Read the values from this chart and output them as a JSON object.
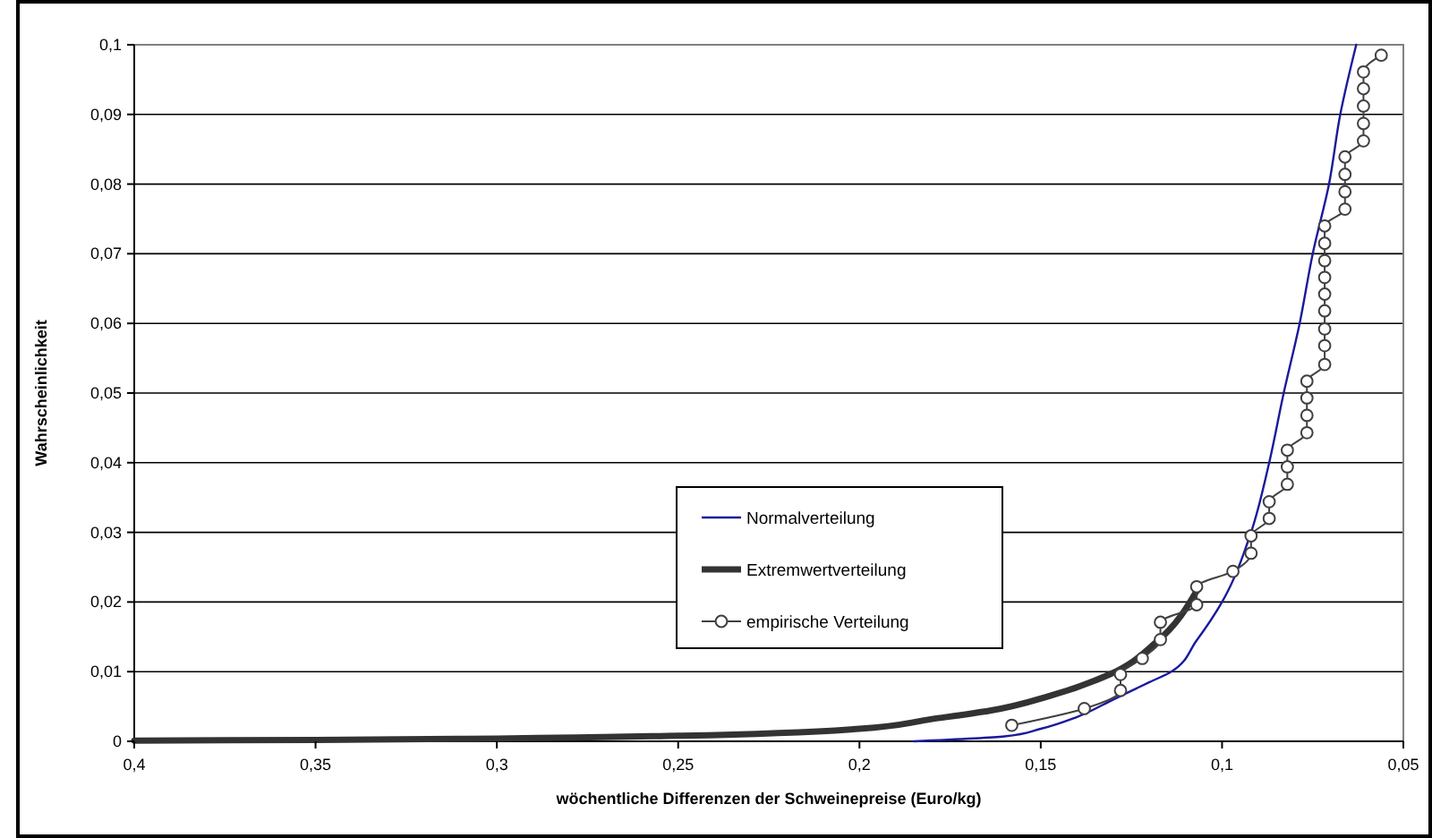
{
  "chart_data": {
    "type": "line",
    "xlabel": "wöchentliche Differenzen der Schweinepreise (Euro/kg)",
    "ylabel": "Wahrscheinlichkeit",
    "xlim": [
      0.4,
      0.05
    ],
    "xticks": [
      {
        "value": 0.4,
        "label": "0,4"
      },
      {
        "value": 0.35,
        "label": "0,35"
      },
      {
        "value": 0.3,
        "label": "0,3"
      },
      {
        "value": 0.25,
        "label": "0,25"
      },
      {
        "value": 0.2,
        "label": "0,2"
      },
      {
        "value": 0.15,
        "label": "0,15"
      },
      {
        "value": 0.1,
        "label": "0,1"
      },
      {
        "value": 0.05,
        "label": "0,05"
      }
    ],
    "ylim": [
      0,
      0.1
    ],
    "yticks": [
      0,
      {
        "value": 0.01,
        "label": "0,01"
      },
      {
        "value": 0.02,
        "label": "0,02"
      },
      {
        "value": 0.03,
        "label": "0,03"
      },
      {
        "value": 0.04,
        "label": "0,04"
      },
      {
        "value": 0.05,
        "label": "0,05"
      },
      {
        "value": 0.06,
        "label": "0,06"
      },
      {
        "value": 0.07,
        "label": "0,07"
      },
      {
        "value": 0.08,
        "label": "0,08"
      },
      {
        "value": 0.09,
        "label": "0,09"
      },
      {
        "value": 0.1,
        "label": "0,1"
      }
    ],
    "grid": "y",
    "legend": "center",
    "series": [
      {
        "name": "Normalverteilung",
        "color": "#1a1a9c",
        "marker": "none",
        "x": [
          0.185,
          0.16,
          0.15,
          0.14,
          0.13,
          0.12,
          0.114,
          0.107,
          0.1,
          0.092,
          0.087,
          0.083,
          0.0786,
          0.075,
          0.0705,
          0.0674,
          0.063
        ],
        "values": [
          0,
          0.0007,
          0.0018,
          0.0035,
          0.006,
          0.0085,
          0.01,
          0.0145,
          0.02,
          0.03,
          0.04,
          0.05,
          0.06,
          0.07,
          0.08,
          0.09,
          0.1
        ]
      },
      {
        "name": "Extremwertverteilung",
        "color": "#333333",
        "marker": "none",
        "x": [
          0.4,
          0.35,
          0.3,
          0.25,
          0.2,
          0.18,
          0.164,
          0.147,
          0.131,
          0.118,
          0.107
        ],
        "values": [
          0.0001,
          0.0002,
          0.0004,
          0.0008,
          0.0018,
          0.0032,
          0.0044,
          0.0066,
          0.0096,
          0.0143,
          0.0216
        ]
      },
      {
        "name": "empirische Verteilung",
        "color": "#404040",
        "marker": "circle",
        "x": [
          0.158,
          0.138,
          0.128,
          0.128,
          0.122,
          0.117,
          0.117,
          0.107,
          0.107,
          0.097,
          0.092,
          0.092,
          0.087,
          0.087,
          0.082,
          0.082,
          0.082,
          0.0766,
          0.0766,
          0.0766,
          0.0766,
          0.0717,
          0.0717,
          0.0717,
          0.0717,
          0.0717,
          0.0717,
          0.0717,
          0.0717,
          0.0717,
          0.0661,
          0.0661,
          0.0661,
          0.0661,
          0.061,
          0.061,
          0.061,
          0.061,
          0.061,
          0.0561
        ],
        "values": [
          0.0023,
          0.0047,
          0.0073,
          0.0096,
          0.0119,
          0.0146,
          0.0171,
          0.0196,
          0.0222,
          0.0244,
          0.027,
          0.0295,
          0.032,
          0.0344,
          0.0369,
          0.0394,
          0.0418,
          0.0443,
          0.0468,
          0.0493,
          0.0517,
          0.0541,
          0.0568,
          0.0592,
          0.0618,
          0.0642,
          0.0666,
          0.069,
          0.0715,
          0.074,
          0.0764,
          0.0789,
          0.0814,
          0.0839,
          0.0862,
          0.0887,
          0.0912,
          0.0937,
          0.0961,
          0.0985
        ]
      }
    ]
  }
}
